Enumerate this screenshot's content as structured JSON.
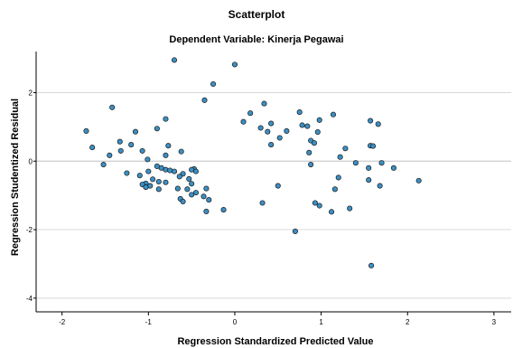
{
  "chart_data": {
    "type": "scatter",
    "title": "Scatterplot",
    "subtitle": "Dependent Variable: Kinerja Pegawai",
    "xlabel": "Regression Standardized Predicted Value",
    "ylabel": "Regression Studentized Residual",
    "xlim": [
      -2.3,
      3.2
    ],
    "ylim": [
      -4.4,
      3.2
    ],
    "x_ticks": [
      -2,
      -1,
      0,
      1,
      2,
      3
    ],
    "y_ticks": [
      2,
      0,
      -2,
      -4
    ],
    "grid": "horizontal",
    "colors": {
      "marker_fill": "#3b8fc4",
      "marker_edge": "#1a1a1a",
      "gridline": "#d9d9d9",
      "reference_line": "#c9c9c9"
    },
    "points": [
      [
        -0.7,
        2.95
      ],
      [
        0.0,
        2.82
      ],
      [
        -0.25,
        2.25
      ],
      [
        -0.35,
        1.78
      ],
      [
        0.34,
        1.68
      ],
      [
        0.75,
        1.43
      ],
      [
        1.14,
        1.36
      ],
      [
        -1.42,
        1.57
      ],
      [
        -0.8,
        1.23
      ],
      [
        0.18,
        1.4
      ],
      [
        0.98,
        1.2
      ],
      [
        1.57,
        1.18
      ],
      [
        1.66,
        1.08
      ],
      [
        0.1,
        1.15
      ],
      [
        0.42,
        1.1
      ],
      [
        0.78,
        1.05
      ],
      [
        0.84,
        1.02
      ],
      [
        0.3,
        0.97
      ],
      [
        -0.9,
        0.95
      ],
      [
        -1.72,
        0.88
      ],
      [
        -1.15,
        0.86
      ],
      [
        0.38,
        0.86
      ],
      [
        0.96,
        0.85
      ],
      [
        0.6,
        0.88
      ],
      [
        0.52,
        0.68
      ],
      [
        -1.33,
        0.57
      ],
      [
        0.88,
        0.6
      ],
      [
        0.92,
        0.53
      ],
      [
        -1.2,
        0.48
      ],
      [
        -0.77,
        0.45
      ],
      [
        0.42,
        0.48
      ],
      [
        1.57,
        0.45
      ],
      [
        1.6,
        0.44
      ],
      [
        -1.65,
        0.4
      ],
      [
        1.28,
        0.37
      ],
      [
        -1.45,
        0.17
      ],
      [
        -1.07,
        0.3
      ],
      [
        -0.62,
        0.28
      ],
      [
        0.86,
        0.25
      ],
      [
        -0.8,
        0.17
      ],
      [
        1.22,
        0.12
      ],
      [
        -1.32,
        0.3
      ],
      [
        -1.01,
        0.05
      ],
      [
        1.4,
        -0.05
      ],
      [
        1.7,
        -0.05
      ],
      [
        -1.52,
        -0.1
      ],
      [
        -0.9,
        -0.15
      ],
      [
        -0.85,
        -0.2
      ],
      [
        -0.8,
        -0.25
      ],
      [
        -0.75,
        -0.27
      ],
      [
        0.88,
        -0.1
      ],
      [
        1.55,
        -0.2
      ],
      [
        1.84,
        -0.2
      ],
      [
        -0.47,
        -0.23
      ],
      [
        -0.5,
        -0.25
      ],
      [
        -0.45,
        -0.3
      ],
      [
        -1.0,
        -0.3
      ],
      [
        -0.7,
        -0.3
      ],
      [
        -0.6,
        -0.37
      ],
      [
        -0.64,
        -0.45
      ],
      [
        -0.53,
        -0.52
      ],
      [
        -0.95,
        -0.53
      ],
      [
        -1.1,
        -0.42
      ],
      [
        -0.88,
        -0.6
      ],
      [
        -1.25,
        -0.35
      ],
      [
        1.2,
        -0.48
      ],
      [
        1.55,
        -0.55
      ],
      [
        2.13,
        -0.57
      ],
      [
        -0.8,
        -0.62
      ],
      [
        -1.03,
        -0.65
      ],
      [
        -0.98,
        -0.72
      ],
      [
        -1.07,
        -0.68
      ],
      [
        -1.03,
        -0.76
      ],
      [
        -0.5,
        -0.66
      ],
      [
        -0.55,
        -0.82
      ],
      [
        -0.33,
        -0.8
      ],
      [
        -0.66,
        -0.8
      ],
      [
        1.16,
        -0.82
      ],
      [
        1.68,
        -0.72
      ],
      [
        0.5,
        -0.72
      ],
      [
        -0.88,
        -0.82
      ],
      [
        -0.45,
        -0.92
      ],
      [
        -0.5,
        -0.98
      ],
      [
        -0.36,
        -1.03
      ],
      [
        -0.63,
        -1.1
      ],
      [
        -0.6,
        -1.18
      ],
      [
        -0.3,
        -1.13
      ],
      [
        0.32,
        -1.22
      ],
      [
        0.93,
        -1.22
      ],
      [
        0.98,
        -1.3
      ],
      [
        1.12,
        -1.48
      ],
      [
        1.33,
        -1.38
      ],
      [
        -0.13,
        -1.42
      ],
      [
        -0.33,
        -1.47
      ],
      [
        0.7,
        -2.05
      ],
      [
        1.58,
        -3.05
      ]
    ]
  }
}
